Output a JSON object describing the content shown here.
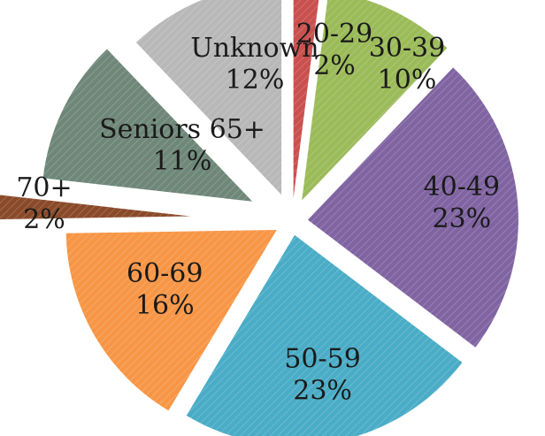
{
  "chart_data": {
    "type": "pie",
    "slices": [
      {
        "name": "20-29",
        "value": 2,
        "label": "2%",
        "color": "#c9504d"
      },
      {
        "name": "30-39",
        "value": 10,
        "label": "10%",
        "color": "#9bbb59"
      },
      {
        "name": "40-49",
        "value": 23,
        "label": "23%",
        "color": "#8064a2"
      },
      {
        "name": "50-59",
        "value": 23,
        "label": "23%",
        "color": "#4aacc6"
      },
      {
        "name": "60-69",
        "value": 16,
        "label": "16%",
        "color": "#f79646"
      },
      {
        "name": "70+",
        "value": 2,
        "label": "2%",
        "color": "#8a4a2a"
      },
      {
        "name": "Seniors 65+",
        "value": 11,
        "label": "11%",
        "color": "#6e8779"
      },
      {
        "name": "Unknown",
        "value": 12,
        "label": "12%",
        "color": "#b8b8b8"
      }
    ],
    "exploded": true,
    "legend": "none"
  }
}
